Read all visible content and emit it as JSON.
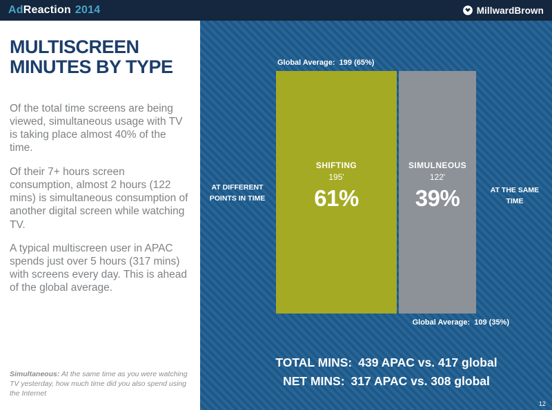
{
  "header": {
    "brand": {
      "ad": "Ad",
      "reaction": "Reaction",
      "year": "2014"
    },
    "logo": {
      "text": "MillwardBrown"
    }
  },
  "left_panel": {
    "title": "MULTISCREEN MINUTES BY TYPE",
    "paragraphs": [
      "Of the total time screens are being viewed, simultaneous usage with TV is taking place almost 40% of the time.",
      "Of their 7+ hours screen consumption, almost 2 hours (122 mins) is simultaneous consumption of another digital screen while watching TV.",
      "A typical multiscreen user in APAC spends just over 5 hours  (317 mins) with screens every day.  This is ahead of the global average."
    ],
    "footnote": {
      "label": "Simultaneous:",
      "text": " At the same time as you were watching TV yesterday, how much time did you also spend using the Internet"
    }
  },
  "chart_data": {
    "type": "bar",
    "title": "Multiscreen minutes by type (share of total screen minutes, APAC)",
    "categories": [
      "SHIFTING",
      "SIMULNEOUS"
    ],
    "minutes": [
      195,
      122
    ],
    "percent": [
      61,
      39
    ],
    "minute_labels": [
      "195'",
      "122'"
    ],
    "percent_labels": [
      "61%",
      "39%"
    ],
    "bar_colors": [
      "#a5aa24",
      "#8c9298"
    ],
    "top_annotation": "Global Average:  199 (65%)",
    "bottom_annotation": "Global Average:  109 (35%)",
    "left_annotation": "AT DIFFERENT POINTS IN TIME",
    "right_annotation": "AT THE SAME TIME",
    "legend_position": "none",
    "grid": false
  },
  "stats": {
    "total": {
      "label": "TOTAL MINS:",
      "value": "439 APAC vs. 417 global"
    },
    "net": {
      "label": "NET MINS:",
      "value": "317 APAC vs. 308 global"
    }
  },
  "page_number": "12",
  "colors": {
    "topbar": "#15263f",
    "accent_teal": "#4aa5c8",
    "panel_blue": "#1e5e91",
    "bar_green": "#a5aa24",
    "bar_gray": "#8c9298",
    "title_navy": "#1c3e6b",
    "body_gray": "#7e8184"
  }
}
